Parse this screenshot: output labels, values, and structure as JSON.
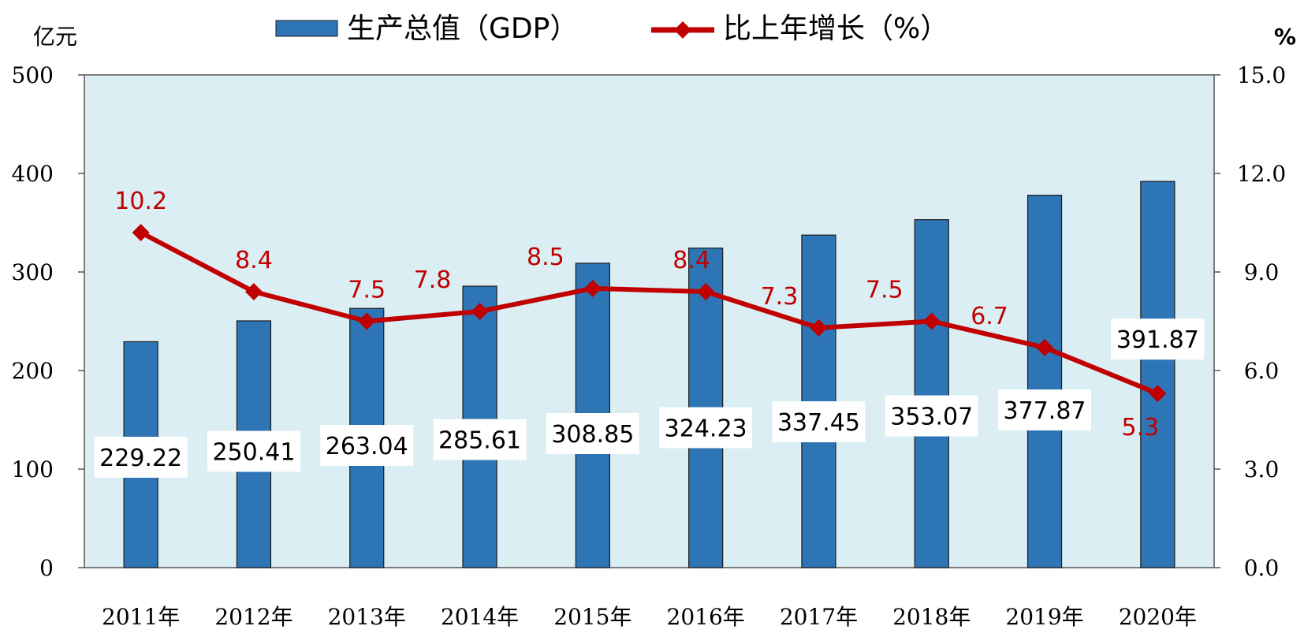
{
  "chart_data": {
    "type": "bar+line",
    "categories": [
      "2011年",
      "2012年",
      "2013年",
      "2014年",
      "2015年",
      "2016年",
      "2017年",
      "2018年",
      "2019年",
      "2020年"
    ],
    "series": [
      {
        "name": "生产总值（GDP）",
        "type": "bar",
        "axis": "left",
        "values": [
          229.22,
          250.41,
          263.04,
          285.61,
          308.85,
          324.23,
          337.45,
          353.07,
          377.87,
          391.87
        ],
        "labels": [
          "229.22",
          "250.41",
          "263.04",
          "285.61",
          "308.85",
          "324.23",
          "337.45",
          "353.07",
          "377.87",
          "391.87"
        ]
      },
      {
        "name": "比上年增长（%）",
        "type": "line",
        "axis": "right",
        "values": [
          10.2,
          8.4,
          7.5,
          7.8,
          8.5,
          8.4,
          7.3,
          7.5,
          6.7,
          5.3
        ],
        "labels": [
          "10.2",
          "8.4",
          "7.5",
          "7.8",
          "8.5",
          "8.4",
          "7.3",
          "7.5",
          "6.7",
          "5.3"
        ]
      }
    ],
    "left_axis": {
      "unit": "亿元",
      "ylim": [
        0,
        500
      ],
      "ticks": [
        "0",
        "100",
        "200",
        "300",
        "400",
        "500"
      ]
    },
    "right_axis": {
      "unit": "%",
      "ylim": [
        0,
        15
      ],
      "ticks": [
        "0.0",
        "3.0",
        "6.0",
        "9.0",
        "12.0",
        "15.0"
      ]
    },
    "legend_position": "top-center",
    "grid": false
  },
  "colors": {
    "bar": "#2e75b6",
    "bar_stroke": "#1a1a1a",
    "line": "#c00000",
    "plot_bg": "#daeef3",
    "label_bg": "#ffffff"
  }
}
